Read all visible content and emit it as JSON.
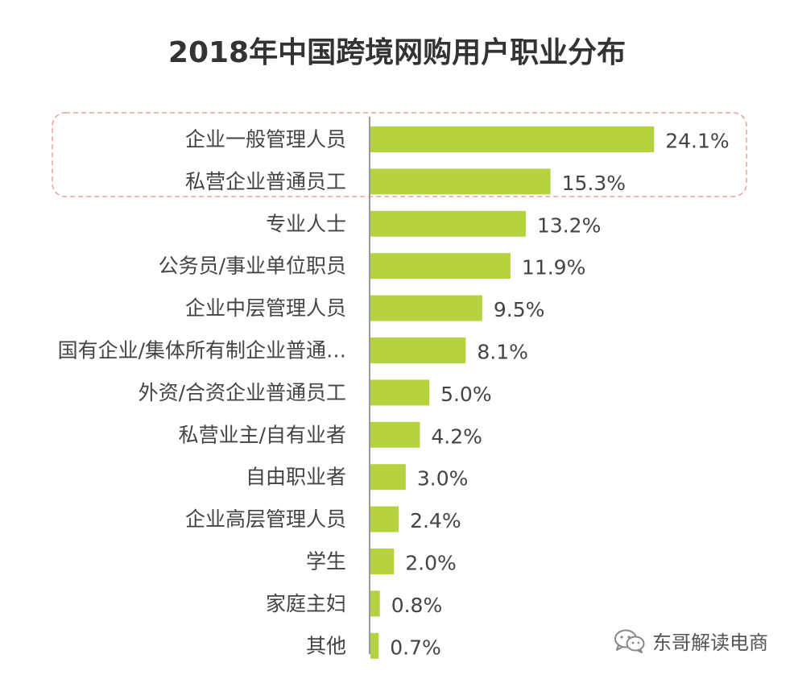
{
  "chart_data": {
    "type": "bar",
    "orientation": "horizontal",
    "title": "2018年中国跨境网购用户职业分布",
    "categories": [
      "企业一般管理人员",
      "私营企业普通员工",
      "专业人士",
      "公务员/事业单位职员",
      "企业中层管理人员",
      "国有企业/集体所有制企业普通…",
      "外资/合资企业普通员工",
      "私营业主/自有业者",
      "自由职业者",
      "企业高层管理人员",
      "学生",
      "家庭主妇",
      "其他"
    ],
    "values": [
      24.1,
      15.3,
      13.2,
      11.9,
      9.5,
      8.1,
      5.0,
      4.2,
      3.0,
      2.4,
      2.0,
      0.8,
      0.7
    ],
    "value_labels": [
      "24.1%",
      "15.3%",
      "13.2%",
      "11.9%",
      "9.5%",
      "8.1%",
      "5.0%",
      "4.2%",
      "3.0%",
      "2.4%",
      "2.0%",
      "0.8%",
      "0.7%"
    ],
    "unit": "%",
    "xlim": [
      0,
      26
    ],
    "grid": false,
    "legend": "none",
    "bar_color": "#b5d33f",
    "highlight": {
      "categories": [
        "企业一般管理人员",
        "私营企业普通员工"
      ],
      "color": "#e8a0a0",
      "style": "dashed"
    }
  },
  "watermark": {
    "text": "东哥解读电商",
    "icon": "wechat-icon"
  }
}
